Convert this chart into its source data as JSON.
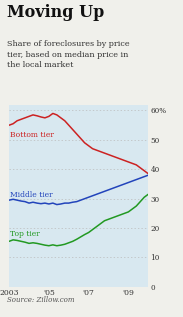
{
  "title": "Moving Up",
  "subtitle": "Share of foreclosures by price\ntier, based on median price in\nthe local market",
  "source": "Source: Zillow.com",
  "ylim": [
    0,
    62
  ],
  "yticks": [
    0,
    10,
    20,
    30,
    40,
    50,
    60
  ],
  "ytick_labels": [
    "0",
    "10",
    "20",
    "30",
    "40",
    "50",
    "60%"
  ],
  "background_color": "#f0f0eb",
  "plot_bg_color": "#ffffff",
  "band_color": "#d8e8f0",
  "grid_color": "#bbbbbb",
  "colors": {
    "bottom": "#cc2222",
    "middle": "#2244bb",
    "top": "#229922"
  },
  "labels": {
    "bottom": "Bottom tier",
    "middle": "Middle tier",
    "top": "Top tier"
  },
  "xmin": 2003.0,
  "xmax": 2010.0,
  "odd_year_bands": [
    2003,
    2005,
    2007,
    2009
  ],
  "bottom_tier": [
    [
      2003.0,
      55.0
    ],
    [
      2003.2,
      55.5
    ],
    [
      2003.4,
      56.5
    ],
    [
      2003.6,
      57.0
    ],
    [
      2003.8,
      57.5
    ],
    [
      2004.0,
      58.0
    ],
    [
      2004.2,
      58.5
    ],
    [
      2004.4,
      58.2
    ],
    [
      2004.6,
      57.8
    ],
    [
      2004.8,
      57.5
    ],
    [
      2005.0,
      58.0
    ],
    [
      2005.2,
      59.0
    ],
    [
      2005.4,
      58.5
    ],
    [
      2005.6,
      57.5
    ],
    [
      2005.8,
      56.5
    ],
    [
      2006.0,
      55.0
    ],
    [
      2006.2,
      53.5
    ],
    [
      2006.4,
      52.0
    ],
    [
      2006.6,
      50.5
    ],
    [
      2006.8,
      49.0
    ],
    [
      2007.0,
      48.0
    ],
    [
      2007.2,
      47.0
    ],
    [
      2007.4,
      46.5
    ],
    [
      2007.6,
      46.0
    ],
    [
      2007.8,
      45.5
    ],
    [
      2008.0,
      45.0
    ],
    [
      2008.2,
      44.5
    ],
    [
      2008.4,
      44.0
    ],
    [
      2008.6,
      43.5
    ],
    [
      2008.8,
      43.0
    ],
    [
      2009.0,
      42.5
    ],
    [
      2009.2,
      42.0
    ],
    [
      2009.4,
      41.5
    ],
    [
      2009.6,
      40.5
    ],
    [
      2009.8,
      39.5
    ],
    [
      2010.0,
      38.5
    ]
  ],
  "middle_tier": [
    [
      2003.0,
      29.5
    ],
    [
      2003.2,
      29.8
    ],
    [
      2003.4,
      29.5
    ],
    [
      2003.6,
      29.2
    ],
    [
      2003.8,
      29.0
    ],
    [
      2004.0,
      28.5
    ],
    [
      2004.2,
      28.8
    ],
    [
      2004.4,
      28.5
    ],
    [
      2004.6,
      28.3
    ],
    [
      2004.8,
      28.5
    ],
    [
      2005.0,
      28.2
    ],
    [
      2005.2,
      28.5
    ],
    [
      2005.4,
      28.0
    ],
    [
      2005.6,
      28.2
    ],
    [
      2005.8,
      28.5
    ],
    [
      2006.0,
      28.5
    ],
    [
      2006.2,
      28.8
    ],
    [
      2006.4,
      29.0
    ],
    [
      2006.6,
      29.5
    ],
    [
      2006.8,
      30.0
    ],
    [
      2007.0,
      30.5
    ],
    [
      2007.2,
      31.0
    ],
    [
      2007.4,
      31.5
    ],
    [
      2007.6,
      32.0
    ],
    [
      2007.8,
      32.5
    ],
    [
      2008.0,
      33.0
    ],
    [
      2008.2,
      33.5
    ],
    [
      2008.4,
      34.0
    ],
    [
      2008.6,
      34.5
    ],
    [
      2008.8,
      35.0
    ],
    [
      2009.0,
      35.5
    ],
    [
      2009.2,
      36.0
    ],
    [
      2009.4,
      36.5
    ],
    [
      2009.6,
      37.0
    ],
    [
      2009.8,
      37.5
    ],
    [
      2010.0,
      38.0
    ]
  ],
  "top_tier": [
    [
      2003.0,
      15.5
    ],
    [
      2003.2,
      16.0
    ],
    [
      2003.4,
      15.8
    ],
    [
      2003.6,
      15.5
    ],
    [
      2003.8,
      15.2
    ],
    [
      2004.0,
      14.8
    ],
    [
      2004.2,
      15.0
    ],
    [
      2004.4,
      14.8
    ],
    [
      2004.6,
      14.5
    ],
    [
      2004.8,
      14.2
    ],
    [
      2005.0,
      14.0
    ],
    [
      2005.2,
      14.3
    ],
    [
      2005.4,
      14.0
    ],
    [
      2005.6,
      14.2
    ],
    [
      2005.8,
      14.5
    ],
    [
      2006.0,
      15.0
    ],
    [
      2006.2,
      15.5
    ],
    [
      2006.4,
      16.2
    ],
    [
      2006.6,
      17.0
    ],
    [
      2006.8,
      17.8
    ],
    [
      2007.0,
      18.5
    ],
    [
      2007.2,
      19.5
    ],
    [
      2007.4,
      20.5
    ],
    [
      2007.6,
      21.5
    ],
    [
      2007.8,
      22.5
    ],
    [
      2008.0,
      23.0
    ],
    [
      2008.2,
      23.5
    ],
    [
      2008.4,
      24.0
    ],
    [
      2008.6,
      24.5
    ],
    [
      2008.8,
      25.0
    ],
    [
      2009.0,
      25.5
    ],
    [
      2009.2,
      26.5
    ],
    [
      2009.4,
      27.5
    ],
    [
      2009.6,
      29.0
    ],
    [
      2009.8,
      30.5
    ],
    [
      2010.0,
      31.5
    ]
  ]
}
